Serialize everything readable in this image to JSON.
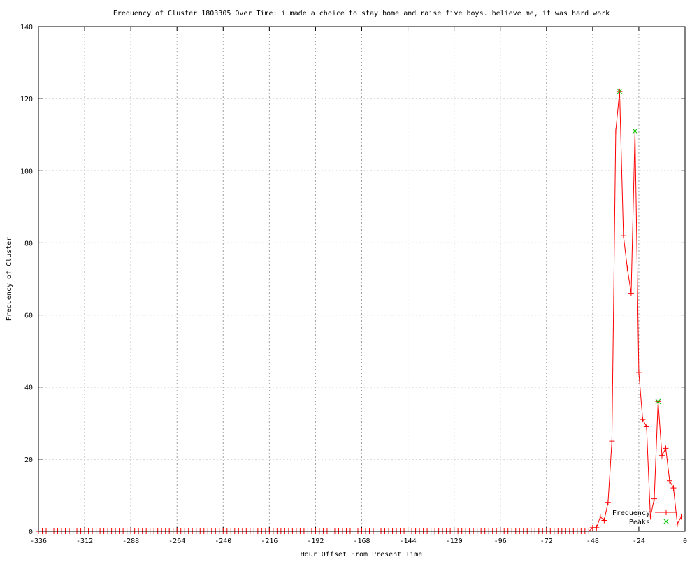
{
  "chart_data": {
    "type": "line",
    "title": "Frequency of Cluster 1803305 Over Time: i made a choice to stay home and raise five boys. believe me, it was hard work",
    "xlabel": "Hour Offset From Present Time",
    "ylabel": "Frequency of Cluster",
    "xlim": [
      -336,
      0
    ],
    "ylim": [
      0,
      140
    ],
    "xticks": [
      -336,
      -312,
      -288,
      -264,
      -240,
      -216,
      -192,
      -168,
      -144,
      -120,
      -96,
      -72,
      -48,
      -24,
      0
    ],
    "yticks": [
      0,
      20,
      40,
      60,
      80,
      100,
      120,
      140
    ],
    "grid": true,
    "legend_placement": "bottom-right",
    "series": [
      {
        "name": "Frequency",
        "color": "#ff0000",
        "marker": "plus",
        "x": [
          -336,
          -334,
          -332,
          -330,
          -328,
          -326,
          -324,
          -322,
          -320,
          -318,
          -316,
          -314,
          -312,
          -310,
          -308,
          -306,
          -304,
          -302,
          -300,
          -298,
          -296,
          -294,
          -292,
          -290,
          -288,
          -286,
          -284,
          -282,
          -280,
          -278,
          -276,
          -274,
          -272,
          -270,
          -268,
          -266,
          -264,
          -262,
          -260,
          -258,
          -256,
          -254,
          -252,
          -250,
          -248,
          -246,
          -244,
          -242,
          -240,
          -238,
          -236,
          -234,
          -232,
          -230,
          -228,
          -226,
          -224,
          -222,
          -220,
          -218,
          -216,
          -214,
          -212,
          -210,
          -208,
          -206,
          -204,
          -202,
          -200,
          -198,
          -196,
          -194,
          -192,
          -190,
          -188,
          -186,
          -184,
          -182,
          -180,
          -178,
          -176,
          -174,
          -172,
          -170,
          -168,
          -166,
          -164,
          -162,
          -160,
          -158,
          -156,
          -154,
          -152,
          -150,
          -148,
          -146,
          -144,
          -142,
          -140,
          -138,
          -136,
          -134,
          -132,
          -130,
          -128,
          -126,
          -124,
          -122,
          -120,
          -118,
          -116,
          -114,
          -112,
          -110,
          -108,
          -106,
          -104,
          -102,
          -100,
          -98,
          -96,
          -94,
          -92,
          -90,
          -88,
          -86,
          -84,
          -82,
          -80,
          -78,
          -76,
          -74,
          -72,
          -70,
          -68,
          -66,
          -64,
          -62,
          -60,
          -58,
          -56,
          -54,
          -52,
          -50,
          -48,
          -46,
          -44,
          -42,
          -40,
          -38,
          -36,
          -34,
          -32,
          -30,
          -28,
          -26,
          -24,
          -22,
          -20,
          -18,
          -16,
          -14,
          -12,
          -10,
          -8,
          -6,
          -4,
          -2
        ],
        "y": [
          0,
          0,
          0,
          0,
          0,
          0,
          0,
          0,
          0,
          0,
          0,
          0,
          0,
          0,
          0,
          0,
          0,
          0,
          0,
          0,
          0,
          0,
          0,
          0,
          0,
          0,
          0,
          0,
          0,
          0,
          0,
          0,
          0,
          0,
          0,
          0,
          0,
          0,
          0,
          0,
          0,
          0,
          0,
          0,
          0,
          0,
          0,
          0,
          0,
          0,
          0,
          0,
          0,
          0,
          0,
          0,
          0,
          0,
          0,
          0,
          0,
          0,
          0,
          0,
          0,
          0,
          0,
          0,
          0,
          0,
          0,
          0,
          0,
          0,
          0,
          0,
          0,
          0,
          0,
          0,
          0,
          0,
          0,
          0,
          0,
          0,
          0,
          0,
          0,
          0,
          0,
          0,
          0,
          0,
          0,
          0,
          0,
          0,
          0,
          0,
          0,
          0,
          0,
          0,
          0,
          0,
          0,
          0,
          0,
          0,
          0,
          0,
          0,
          0,
          0,
          0,
          0,
          0,
          0,
          0,
          0,
          0,
          0,
          0,
          0,
          0,
          0,
          0,
          0,
          0,
          0,
          0,
          0,
          0,
          0,
          0,
          0,
          0,
          0,
          0,
          0,
          0,
          0,
          0,
          1,
          1,
          4,
          3,
          8,
          25,
          111,
          122,
          82,
          73,
          66,
          111,
          44,
          31,
          29,
          4,
          9,
          36,
          21,
          23,
          14,
          12,
          2,
          4
        ]
      },
      {
        "name": "Peaks",
        "color": "#00c000",
        "marker": "x",
        "x": [
          -34,
          -26,
          -14
        ],
        "y": [
          122,
          111,
          36
        ]
      }
    ]
  }
}
